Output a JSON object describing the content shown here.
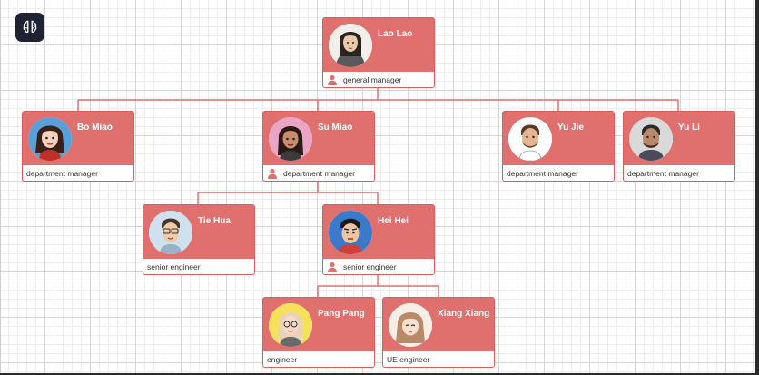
{
  "colors": {
    "node_fill": "#e0706e",
    "connector": "#e0706e",
    "logo_bg": "#1f2233"
  },
  "app": {
    "logo_icon": "brain-icon"
  },
  "org": {
    "nodes": [
      {
        "id": "lao-lao",
        "name": "Lao Lao",
        "role": "general manager",
        "role_icon": true
      },
      {
        "id": "bo-miao",
        "name": "Bo Miao",
        "role": "department manager",
        "role_icon": false
      },
      {
        "id": "su-miao",
        "name": "Su Miao",
        "role": "department manager",
        "role_icon": true
      },
      {
        "id": "yu-jie",
        "name": "Yu Jie",
        "role": "department manager",
        "role_icon": false
      },
      {
        "id": "yu-li",
        "name": "Yu Li",
        "role": "department manager",
        "role_icon": false
      },
      {
        "id": "tie-hua",
        "name": "Tie Hua",
        "role": "senior engineer",
        "role_icon": false
      },
      {
        "id": "hei-hei",
        "name": "Hei Hei",
        "role": "senior engineer",
        "role_icon": true
      },
      {
        "id": "pang-pang",
        "name": "Pang Pang",
        "role": "engineer",
        "role_icon": false
      },
      {
        "id": "xiang-xiang",
        "name": "Xiang Xiang",
        "role": "UE engineer",
        "role_icon": false
      }
    ]
  }
}
